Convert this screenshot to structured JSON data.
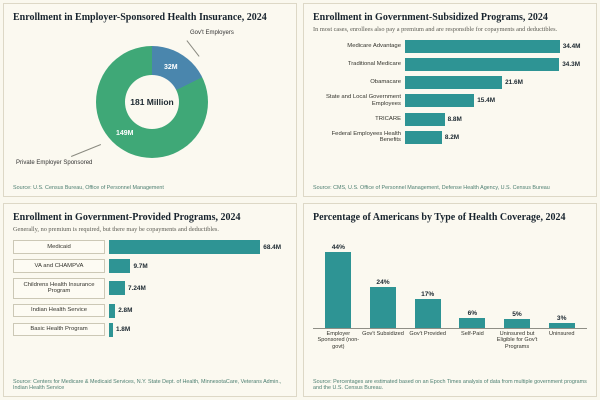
{
  "colors": {
    "background": "#faf8ee",
    "teal_bar": "#2e9494",
    "donut_green": "#3fa877",
    "donut_blue": "#4a86ad",
    "source_text": "#4d7f71"
  },
  "chart_data": [
    {
      "type": "pie",
      "title": "Enrollment in Employer-Sponsored Health Insurance, 2024",
      "center_label": "181 Million",
      "slices": [
        {
          "label": "Gov't Employers",
          "value": 32,
          "value_label": "32M",
          "color": "#4a86ad"
        },
        {
          "label": "Private Employer Sponsored",
          "value": 149,
          "value_label": "149M",
          "color": "#3fa877"
        }
      ],
      "source": "Source: U.S. Census Bureau, Office of Personnel Management"
    },
    {
      "type": "bar",
      "orientation": "horizontal",
      "title": "Enrollment in Government-Subsidized Programs, 2024",
      "subtitle": "In most cases, enrollees also pay a premium and are responsible for copayments and deductibles.",
      "categories": [
        "Medicare Advantage",
        "Traditional Medicare",
        "Obamacare",
        "State and Local Government Employees",
        "TRICARE",
        "Federal Employees Health Benefits"
      ],
      "values": [
        34.4,
        34.3,
        21.6,
        15.4,
        8.8,
        8.2
      ],
      "value_labels": [
        "34.4M",
        "34.3M",
        "21.6M",
        "15.4M",
        "8.8M",
        "8.2M"
      ],
      "bar_color": "#2e9494",
      "source": "Source: CMS, U.S. Office of Personnel Management, Defense Health Agency, U.S. Census Bureau"
    },
    {
      "type": "bar",
      "orientation": "horizontal",
      "title": "Enrollment in Government-Provided Programs, 2024",
      "subtitle": "Generally, no premium is required, but there may be copayments and deductibles.",
      "categories": [
        "Medicaid",
        "VA and CHAMPVA",
        "Childrens Health Insurance Program",
        "Indian Health Service",
        "Basic Health Program"
      ],
      "values": [
        68.4,
        9.7,
        7.24,
        2.8,
        1.8
      ],
      "value_labels": [
        "68.4M",
        "9.7M",
        "7.24M",
        "2.8M",
        "1.8M"
      ],
      "bar_color": "#2e9494",
      "source": "Source: Centers for Medicare & Medicaid Services, N.Y. State Dept. of Health, MinnesotaCare, Veterans Admin., Indian Health Service"
    },
    {
      "type": "bar",
      "orientation": "vertical",
      "title": "Percentage of Americans by Type of Health Coverage, 2024",
      "categories": [
        "Employer Sponsored (non-govt)",
        "Gov't Subsidized",
        "Gov't Provided",
        "Self-Paid",
        "Uninsured but Eligible for Gov't Programs",
        "Uninsured"
      ],
      "values": [
        44,
        24,
        17,
        6,
        5,
        3
      ],
      "value_labels": [
        "44%",
        "24%",
        "17%",
        "6%",
        "5%",
        "3%"
      ],
      "bar_color": "#2e9494",
      "source": "Source: Percentages are estimated based on an Epoch Times analysis of data from multiple government programs and the U.S. Census Bureau."
    }
  ]
}
